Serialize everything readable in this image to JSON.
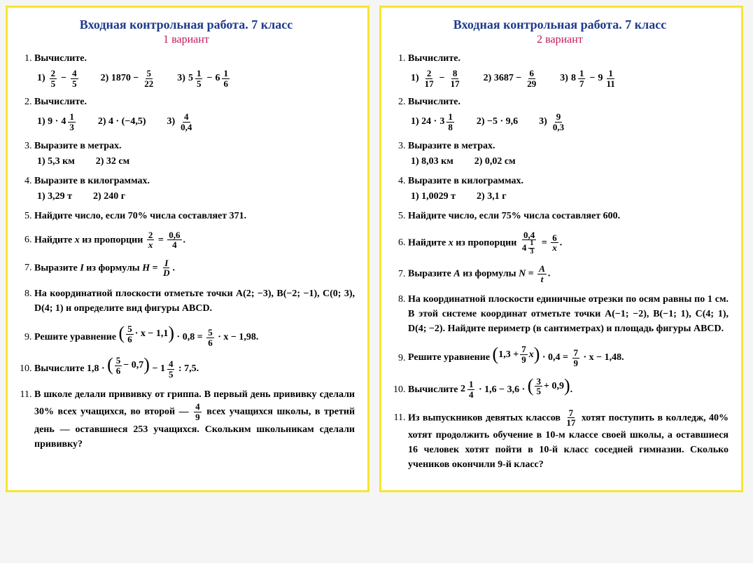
{
  "title": "Входная контрольная работа. 7 класс",
  "variants": [
    "1 вариант",
    "2 вариант"
  ],
  "colors": {
    "border": "#f5e632",
    "title": "#1e3a8a",
    "variant": "#c2185b",
    "text": "#000000",
    "background": "#ffffff"
  },
  "v1": {
    "t1": "Вычислите.",
    "t1s": [
      "1)",
      "2) 1870 −",
      "3)"
    ],
    "f1a": {
      "n": "2",
      "d": "5"
    },
    "f1b": {
      "n": "4",
      "d": "5"
    },
    "f1c": {
      "n": "5",
      "d": "22"
    },
    "m1d": {
      "w": "5",
      "n": "1",
      "d": "5"
    },
    "m1e": {
      "w": "6",
      "n": "1",
      "d": "6"
    },
    "t2": "Вычислите.",
    "t2a": "1) 9 ·",
    "m2a": {
      "w": "4",
      "n": "1",
      "d": "3"
    },
    "t2b": "2) 4 · (−4,5)",
    "t2c": "3)",
    "f2c": {
      "n": "4",
      "d": "0,4"
    },
    "t3": "Выразите в метрах.",
    "t3a": "1) 5,3 км",
    "t3b": "2) 32 см",
    "t4": "Выразите в килограммах.",
    "t4a": "1) 3,29 т",
    "t4b": "2) 240 г",
    "t5": "Найдите число, если 70% числа составляет 371.",
    "t6a": "Найдите ",
    "t6b": " из пропорции ",
    "f6a": {
      "n": "2",
      "d": "x"
    },
    "f6b": {
      "n": "0,6",
      "d": "4"
    },
    "t7a": "Выразите ",
    "t7b": " из формулы ",
    "f7": {
      "n": "I",
      "d": "D"
    },
    "t8": "На координатной плоскости отметьте точки A(2; −3), B(−2; −1), C(0; 3), D(4; 1) и определите вид фигуры ABCD.",
    "t9a": "Решите уравнение ",
    "t9b": " · 0,8 = ",
    "t9c": " · x − 1,98.",
    "f9a": {
      "n": "5",
      "d": "6"
    },
    "t9mid": " · x − 1,1",
    "t10a": "Вычислите 1,8 · ",
    "t10b": " − ",
    "t10c": " : 7,5.",
    "f10a": {
      "n": "5",
      "d": "6"
    },
    "t10mid": " − 0,7",
    "m10": {
      "w": "1",
      "n": "4",
      "d": "5"
    },
    "t11": "В школе делали прививку от гриппа. В первый день прививку сделали 30% всех учащихся, во второй — ",
    "f11": {
      "n": "4",
      "d": "9"
    },
    "t11b": " всех учащихся школы, в третий день — оставшиеся 253 учащихся. Скольким школьникам сделали прививку?"
  },
  "v2": {
    "t1": "Вычислите.",
    "f1a": {
      "n": "2",
      "d": "17"
    },
    "f1b": {
      "n": "8",
      "d": "17"
    },
    "t1b": "2) 3687 −",
    "f1c": {
      "n": "6",
      "d": "29"
    },
    "m1d": {
      "w": "8",
      "n": "1",
      "d": "7"
    },
    "m1e": {
      "w": "9",
      "n": "1",
      "d": "11"
    },
    "t2": "Вычислите.",
    "t2a": "1) 24 ·",
    "m2a": {
      "w": "3",
      "n": "1",
      "d": "8"
    },
    "t2b": "2) −5 · 9,6",
    "t2c": "3)",
    "f2c": {
      "n": "9",
      "d": "0,3"
    },
    "t3": "Выразите в метрах.",
    "t3a": "1) 8,03 км",
    "t3b": "2) 0,02 см",
    "t4": "Выразите в килограммах.",
    "t4a": "1) 1,0029 т",
    "t4b": "2) 3,1 г",
    "t5": "Найдите число, если 75% числа составляет 600.",
    "t6a": "Найдите ",
    "t6b": " из пропорции ",
    "f6a_n": "0,4",
    "m6a_d": {
      "w": "4",
      "n": "1",
      "d": "3"
    },
    "f6b": {
      "n": "6",
      "d": "x"
    },
    "t7a": "Выразите ",
    "t7b": " из формулы ",
    "f7": {
      "n": "A",
      "d": "t"
    },
    "t8": "На координатной плоскости единичные отрезки по осям равны по 1 см. В этой системе координат отметьте точки A(−1; −2), B(−1; 1), C(4; 1), D(4; −2). Найдите периметр (в сантиметрах) и площадь фигуры ABCD.",
    "t9a": "Решите уравнение ",
    "t9b": " · 0,4 = ",
    "t9c": " · x − 1,48.",
    "t9mid1": "1,3 + ",
    "f9a": {
      "n": "7",
      "d": "9"
    },
    "t9mid2": " x",
    "t10a": "Вычислите ",
    "m10a": {
      "w": "2",
      "n": "1",
      "d": "4"
    },
    "t10b": " · 1,6 − 3,6 · ",
    "f10b": {
      "n": "3",
      "d": "5"
    },
    "t10c": " + 0,9",
    "t10d": ".",
    "t11a": "Из выпускников девятых классов ",
    "f11": {
      "n": "7",
      "d": "17"
    },
    "t11b": " хотят поступить в колледж, 40% хотят продолжить обучение в 10-м классе своей школы, а оставшиеся 16 человек хотят пойти в 10-й класс соседней гимназии. Сколько учеников окончили 9-й класс?"
  }
}
